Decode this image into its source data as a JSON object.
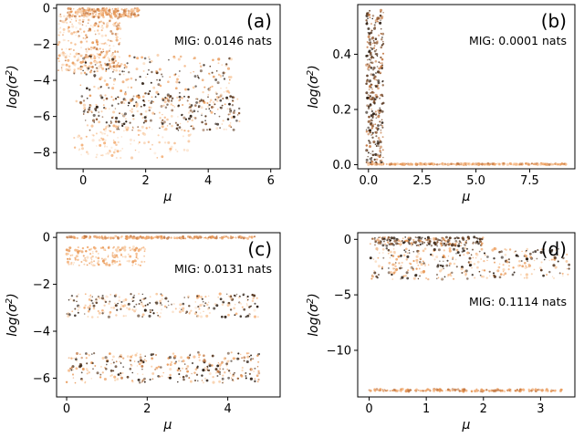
{
  "figure": {
    "title": "",
    "ylabel_text": "log(σ",
    "ylabel_sup": "2",
    "ylabel_close": ")",
    "xlabel_text": "μ"
  },
  "palette": [
    "#2b1d12",
    "#5a3a22",
    "#8c5a36",
    "#c47a45",
    "#e89a5a",
    "#f4b27c",
    "#f8cda6",
    "#fbe2cc"
  ],
  "chart_data": [
    {
      "type": "scatter",
      "panel": "(a)",
      "annotation": "MIG: 0.0146 nats",
      "xlim": [
        -0.85,
        6.3
      ],
      "ylim": [
        -8.9,
        0.2
      ],
      "xticks": [
        0,
        2,
        4,
        6
      ],
      "xtick_labels": [
        "0",
        "2",
        "4",
        "6"
      ],
      "yticks": [
        0,
        -2,
        -4,
        -6,
        -8
      ],
      "ytick_labels": [
        "0",
        "−2",
        "−4",
        "−6",
        "−8"
      ],
      "xlabel": "μ",
      "ylabel": "log(σ²)",
      "clusters": [
        {
          "x": [
            -0.5,
            1.8
          ],
          "y": [
            -0.5,
            0.0
          ],
          "n": 220,
          "c": [
            3,
            4,
            5,
            6
          ]
        },
        {
          "x": [
            -0.8,
            1.2
          ],
          "y": [
            -3.5,
            -0.3
          ],
          "n": 320,
          "c": [
            3,
            4,
            5,
            6,
            7
          ]
        },
        {
          "x": [
            -0.3,
            4.8
          ],
          "y": [
            -5.5,
            -2.6
          ],
          "n": 260,
          "c": [
            0,
            1,
            4,
            5,
            6
          ]
        },
        {
          "x": [
            0.0,
            5.0
          ],
          "y": [
            -6.8,
            -4.8
          ],
          "n": 260,
          "c": [
            0,
            1,
            2,
            5,
            6
          ]
        },
        {
          "x": [
            -0.3,
            3.5
          ],
          "y": [
            -8.3,
            -6.5
          ],
          "n": 120,
          "c": [
            5,
            6,
            7
          ]
        }
      ]
    },
    {
      "type": "scatter",
      "panel": "(b)",
      "annotation": "MIG: 0.0001 nats",
      "xlim": [
        -0.5,
        9.6
      ],
      "ylim": [
        -0.015,
        0.58
      ],
      "xticks": [
        0,
        2.5,
        5,
        7.5
      ],
      "xtick_labels": [
        "0.0",
        "2.5",
        "5.0",
        "7.5"
      ],
      "yticks": [
        0,
        0.2,
        0.4
      ],
      "ytick_labels": [
        "0.0",
        "0.2",
        "0.4"
      ],
      "xlabel": "μ",
      "ylabel": "log(σ²)",
      "clusters": [
        {
          "x": [
            -0.1,
            0.7
          ],
          "y": [
            0.0,
            0.56
          ],
          "n": 320,
          "c": [
            0,
            1,
            2,
            3
          ]
        },
        {
          "x": [
            0.0,
            9.2
          ],
          "y": [
            0.0,
            0.004
          ],
          "n": 320,
          "c": [
            3,
            4,
            5,
            6
          ]
        }
      ]
    },
    {
      "type": "scatter",
      "panel": "(c)",
      "annotation": "MIG: 0.0131 nats",
      "xlim": [
        -0.25,
        5.3
      ],
      "ylim": [
        -6.8,
        0.2
      ],
      "xticks": [
        0,
        2,
        4
      ],
      "xtick_labels": [
        "0",
        "2",
        "4"
      ],
      "yticks": [
        0,
        -2,
        -4,
        -6
      ],
      "ytick_labels": [
        "0",
        "−2",
        "−4",
        "−6"
      ],
      "xlabel": "μ",
      "ylabel": "log(σ²)",
      "clusters": [
        {
          "x": [
            0.0,
            4.7
          ],
          "y": [
            -0.05,
            0.05
          ],
          "n": 200,
          "c": [
            3,
            4,
            5
          ]
        },
        {
          "x": [
            0.0,
            2.0
          ],
          "y": [
            -1.2,
            -0.4
          ],
          "n": 160,
          "c": [
            4,
            5,
            6
          ]
        },
        {
          "x": [
            0.0,
            4.8
          ],
          "y": [
            -3.4,
            -2.4
          ],
          "n": 280,
          "c": [
            0,
            1,
            5,
            6,
            7
          ]
        },
        {
          "x": [
            0.0,
            4.8
          ],
          "y": [
            -6.2,
            -4.9
          ],
          "n": 320,
          "c": [
            0,
            1,
            3,
            4,
            5,
            6
          ]
        }
      ]
    },
    {
      "type": "scatter",
      "panel": "(d)",
      "annotation": "MIG: 0.1114 nats",
      "xlim": [
        -0.2,
        3.6
      ],
      "ylim": [
        -14.2,
        0.6
      ],
      "xticks": [
        0,
        1,
        2,
        3
      ],
      "xtick_labels": [
        "0",
        "1",
        "2",
        "3"
      ],
      "yticks": [
        0,
        -5,
        -10
      ],
      "ytick_labels": [
        "0",
        "−5",
        "−10"
      ],
      "xlabel": "μ",
      "ylabel": "log(σ²)",
      "clusters": [
        {
          "x": [
            0.0,
            2.0
          ],
          "y": [
            -0.6,
            0.2
          ],
          "n": 200,
          "c": [
            0,
            1,
            2,
            4
          ]
        },
        {
          "x": [
            0.0,
            3.5
          ],
          "y": [
            -3.6,
            -0.8
          ],
          "n": 340,
          "c": [
            0,
            1,
            4,
            5,
            6
          ]
        },
        {
          "x": [
            0.0,
            3.4
          ],
          "y": [
            -13.7,
            -13.5
          ],
          "n": 180,
          "c": [
            3,
            4,
            5
          ]
        }
      ]
    }
  ]
}
